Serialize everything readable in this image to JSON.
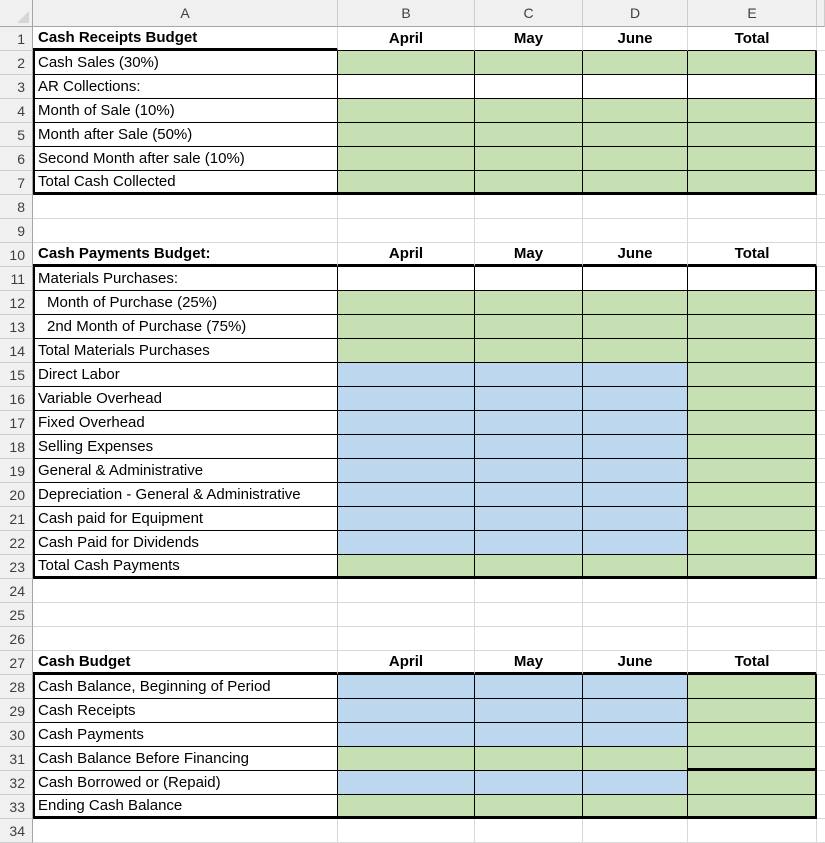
{
  "colors": {
    "green_fill": "#C6E0B4",
    "blue_fill": "#BDD7EE",
    "white_fill": "#FFFFFF",
    "border_black": "#000000",
    "gridline": "#D8D8D8",
    "header_bg": "#F0F0F0",
    "header_line_strong": "#A6A6A6",
    "header_line_soft": "#CDCDCD",
    "header_text": "#3F3F3F",
    "corner_triangle": "#D6D6D6"
  },
  "corner": {
    "icon": "select-all-triangle"
  },
  "columns": [
    "A",
    "B",
    "C",
    "D",
    "E"
  ],
  "row_numbers": [
    "1",
    "2",
    "3",
    "4",
    "5",
    "6",
    "7",
    "8",
    "9",
    "10",
    "11",
    "12",
    "13",
    "14",
    "15",
    "16",
    "17",
    "18",
    "19",
    "20",
    "21",
    "22",
    "23",
    "24",
    "25",
    "26",
    "27",
    "28",
    "29",
    "30",
    "31",
    "32",
    "33",
    "34"
  ],
  "sections": [
    {
      "title": "Cash Receipts Budget",
      "title_row": 1,
      "months": [
        "April",
        "May",
        "June",
        "Total"
      ],
      "rows": [
        {
          "n": 2,
          "label": "Cash Sales (30%)",
          "bcd": "green",
          "e": "green"
        },
        {
          "n": 3,
          "label": "AR Collections:",
          "bcd": "white",
          "e": "white"
        },
        {
          "n": 4,
          "label": "Month of Sale (10%)",
          "bcd": "green",
          "e": "green"
        },
        {
          "n": 5,
          "label": "Month after Sale (50%)",
          "bcd": "green",
          "e": "green"
        },
        {
          "n": 6,
          "label": "Second Month after sale (10%)",
          "bcd": "green",
          "e": "green"
        },
        {
          "n": 7,
          "label": "Total Cash Collected",
          "bcd": "green",
          "e": "green"
        }
      ]
    },
    {
      "title": "Cash Payments Budget:",
      "title_row": 10,
      "months": [
        "April",
        "May",
        "June",
        "Total"
      ],
      "rows": [
        {
          "n": 11,
          "label": "Materials Purchases:",
          "bcd": "white",
          "e": "white"
        },
        {
          "n": 12,
          "label": "Month of Purchase (25%)",
          "indent": true,
          "bcd": "green",
          "e": "green"
        },
        {
          "n": 13,
          "label": "2nd Month of Purchase (75%)",
          "indent": true,
          "bcd": "green",
          "e": "green"
        },
        {
          "n": 14,
          "label": "Total Materials Purchases",
          "bcd": "green",
          "e": "green"
        },
        {
          "n": 15,
          "label": "Direct Labor",
          "bcd": "blue",
          "e": "green"
        },
        {
          "n": 16,
          "label": "Variable Overhead",
          "bcd": "blue",
          "e": "green"
        },
        {
          "n": 17,
          "label": "Fixed Overhead",
          "bcd": "blue",
          "e": "green"
        },
        {
          "n": 18,
          "label": "Selling Expenses",
          "bcd": "blue",
          "e": "green"
        },
        {
          "n": 19,
          "label": "General & Administrative",
          "bcd": "blue",
          "e": "green"
        },
        {
          "n": 20,
          "label": "Depreciation - General & Administrative",
          "bcd": "blue",
          "e": "green"
        },
        {
          "n": 21,
          "label": "Cash paid for Equipment",
          "bcd": "blue",
          "e": "green"
        },
        {
          "n": 22,
          "label": "Cash Paid for Dividends",
          "bcd": "blue",
          "e": "green"
        },
        {
          "n": 23,
          "label": "Total Cash Payments",
          "bcd": "green",
          "e": "green"
        }
      ]
    },
    {
      "title": "Cash Budget",
      "title_row": 27,
      "months": [
        "April",
        "May",
        "June",
        "Total"
      ],
      "rows": [
        {
          "n": 28,
          "label": "Cash Balance, Beginning of Period",
          "bcd": "blue",
          "e": "green"
        },
        {
          "n": 29,
          "label": "Cash Receipts",
          "bcd": "blue",
          "e": "green"
        },
        {
          "n": 30,
          "label": "Cash Payments",
          "bcd": "blue",
          "e": "green"
        },
        {
          "n": 31,
          "label": "Cash Balance Before Financing",
          "bcd": "green",
          "e": "green",
          "thick_bottom_total": true
        },
        {
          "n": 32,
          "label": "Cash Borrowed or (Repaid)",
          "bcd": "blue",
          "e": "green"
        },
        {
          "n": 33,
          "label": "Ending Cash Balance",
          "bcd": "green",
          "e": "green"
        }
      ]
    }
  ]
}
